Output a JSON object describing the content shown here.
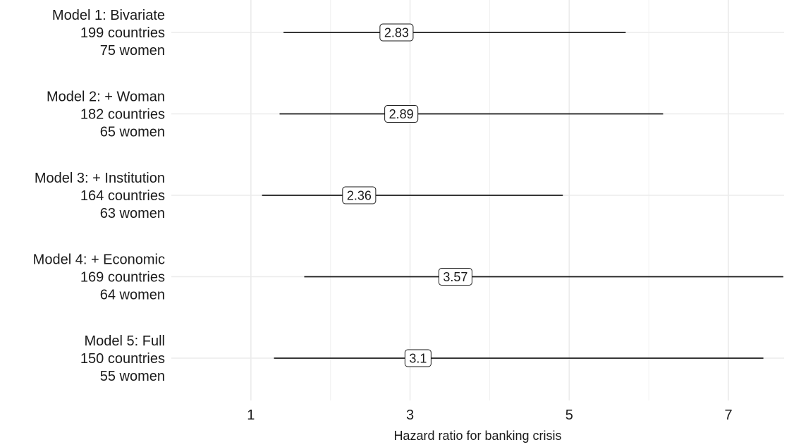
{
  "chart_data": {
    "type": "forest",
    "xlabel": "Hazard ratio for banking crisis",
    "x_ticks": [
      1,
      3,
      5,
      7
    ],
    "xlim": [
      0.0,
      7.7
    ],
    "grid": true,
    "models": [
      {
        "label_lines": [
          "Model 1: Bivariate",
          "199 countries",
          "75 women"
        ],
        "estimate": 2.83,
        "estimate_label": "2.83",
        "ci_low": 1.41,
        "ci_high": 5.71
      },
      {
        "label_lines": [
          "Model 2: + Woman",
          "182 countries",
          "65 women"
        ],
        "estimate": 2.89,
        "estimate_label": "2.89",
        "ci_low": 1.36,
        "ci_high": 6.18
      },
      {
        "label_lines": [
          "Model 3: + Institution",
          "164 countries",
          "63 women"
        ],
        "estimate": 2.36,
        "estimate_label": "2.36",
        "ci_low": 1.14,
        "ci_high": 4.92
      },
      {
        "label_lines": [
          "Model 4: + Economic",
          "169 countries",
          "64 women"
        ],
        "estimate": 3.57,
        "estimate_label": "3.57",
        "ci_low": 1.67,
        "ci_high": 7.69
      },
      {
        "label_lines": [
          "Model 5: Full",
          "150 countries",
          "55 women"
        ],
        "estimate": 3.1,
        "estimate_label": "3.1",
        "ci_low": 1.29,
        "ci_high": 7.44
      }
    ]
  }
}
